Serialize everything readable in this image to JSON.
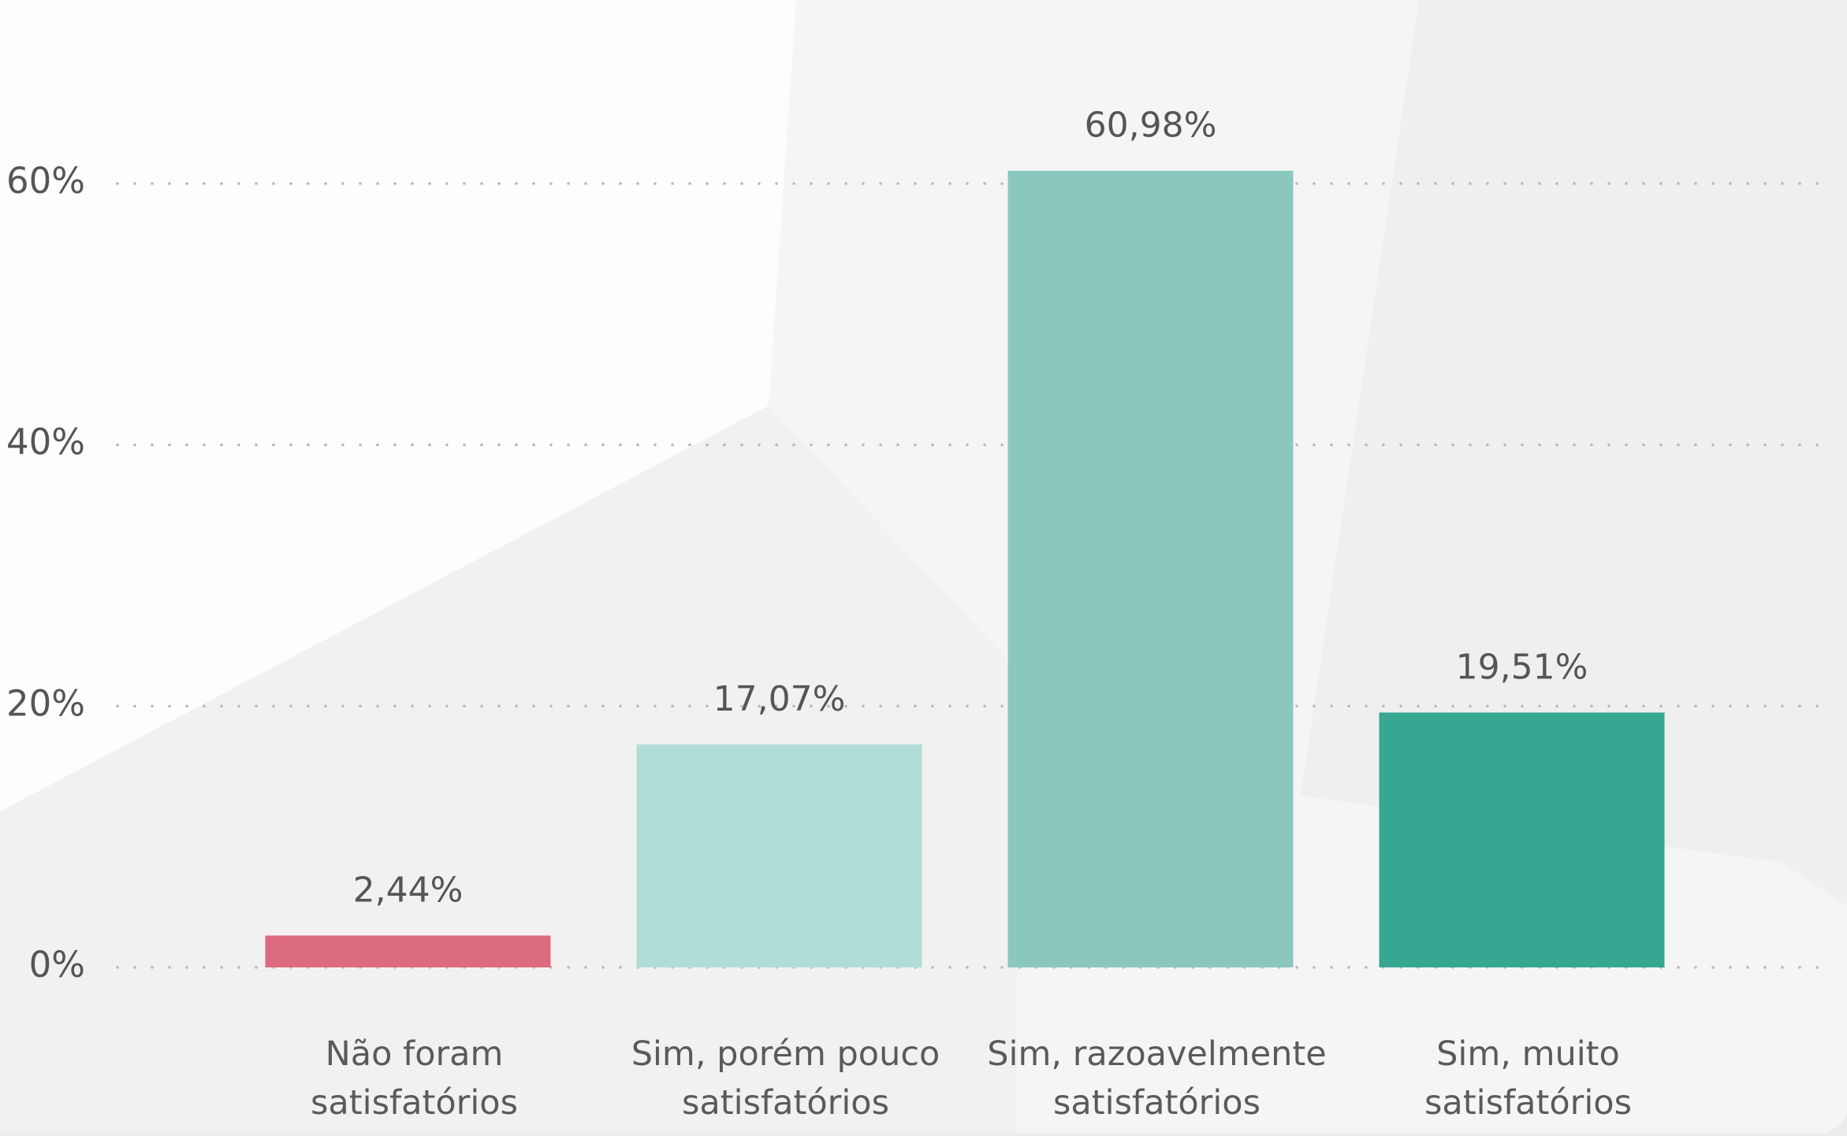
{
  "chart_data": {
    "type": "bar",
    "categories": [
      "Não foram satisfatórios",
      "Sim, porém pouco satisfatórios",
      "Sim, razoavelmente satisfatórios",
      "Sim, muito satisfatórios"
    ],
    "values": [
      2.44,
      17.07,
      60.98,
      19.51
    ],
    "value_labels": [
      "2,44%",
      "17,07%",
      "60,98%",
      "19,51%"
    ],
    "colors": [
      "#dd6b80",
      "#b0ddd6",
      "#8ac8bd",
      "#37a792"
    ],
    "ylim": [
      0,
      60
    ],
    "yticks": [
      {
        "value": 0,
        "label": "0%"
      },
      {
        "value": 20,
        "label": "20%"
      },
      {
        "value": 40,
        "label": "40%"
      },
      {
        "value": 60,
        "label": "60%"
      }
    ],
    "grid": true
  }
}
